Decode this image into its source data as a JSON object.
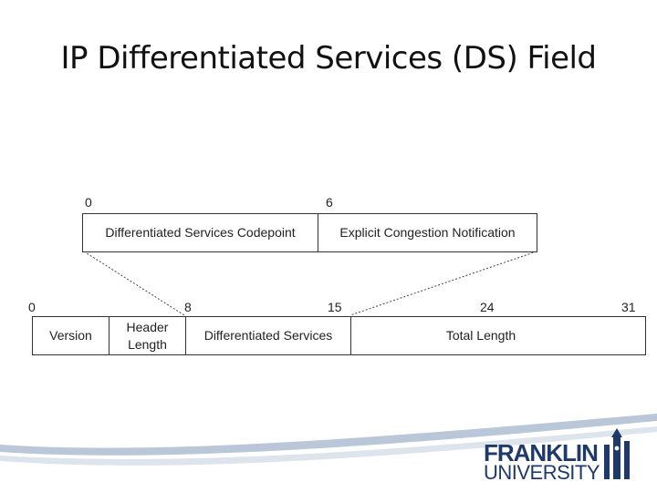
{
  "slide": {
    "title": "IP Differentiated Services (DS) Field"
  },
  "ds_field": {
    "bit_labels": [
      "0",
      "6"
    ],
    "fields": [
      "Differentiated Services Codepoint",
      "Explicit Congestion Notification"
    ]
  },
  "ip_header": {
    "bit_labels": [
      "0",
      "8",
      "15",
      "24",
      "31"
    ],
    "fields": {
      "version": "Version",
      "header_length_line1": "Header",
      "header_length_line2": "Length",
      "differentiated_services": "Differentiated Services",
      "total_length": "Total Length"
    }
  },
  "logo": {
    "line1": "FRANKLIN",
    "line2": "UNIVERSITY"
  },
  "colors": {
    "logo_blue": "#1f3a68",
    "wave_light": "#b9c7d8"
  }
}
